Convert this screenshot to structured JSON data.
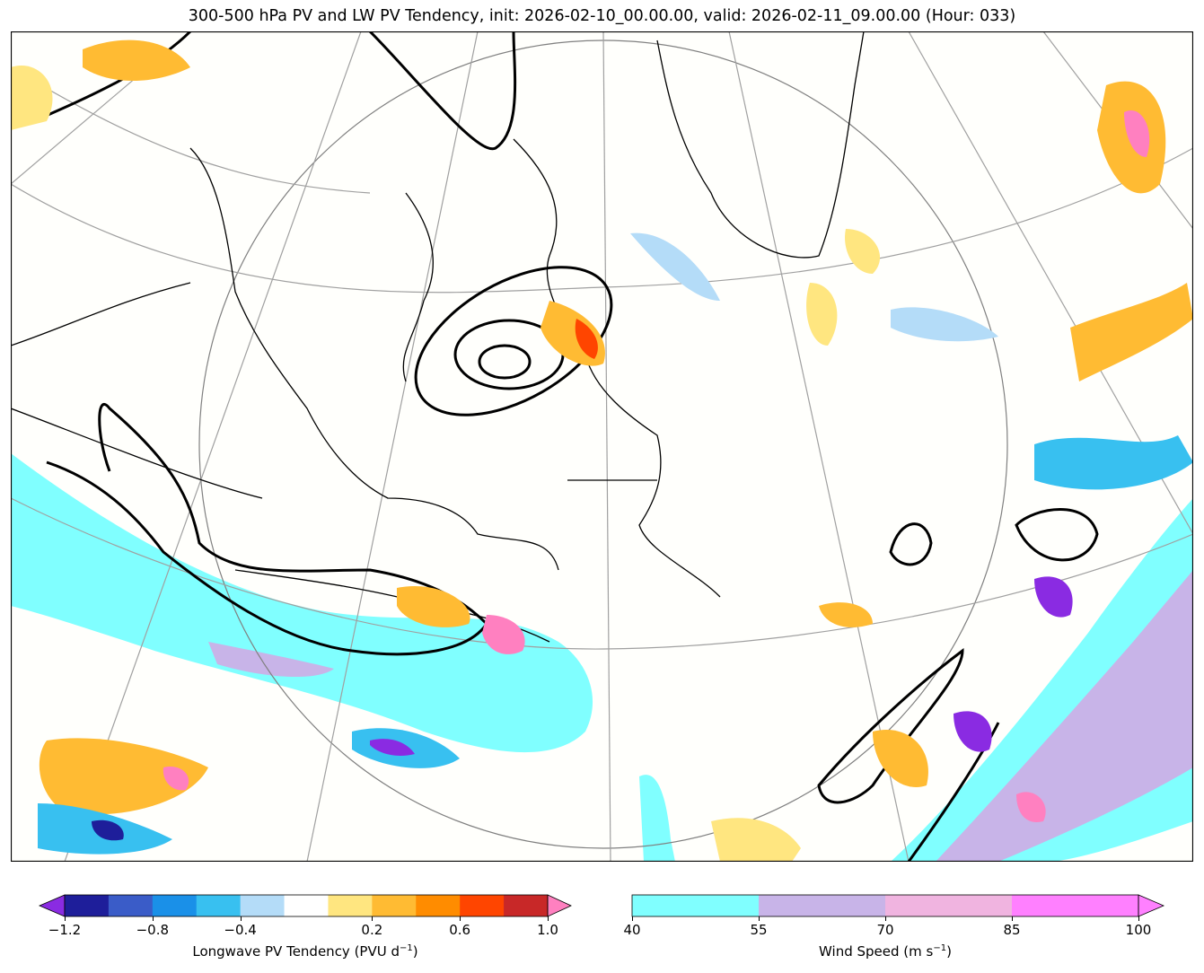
{
  "title": "300-500 hPa PV and LW PV Tendency, init: 2026-02-10_00.00.00, valid: 2026-02-11_09.00.00 (Hour: 033)",
  "colorbar_left": {
    "label": "Longwave PV Tendency (PVU d",
    "label_sup": "−1",
    "label_end": ")",
    "tick_labels": [
      "−1.2",
      "−0.8",
      "−0.4",
      "0.2",
      "0.6",
      "1.0"
    ],
    "colors": [
      "#8a2be2",
      "#1e1e9a",
      "#3a5cc8",
      "#1a90e8",
      "#38c0f0",
      "#b4dcf8",
      "#ffffff",
      "#ffe680",
      "#ffbb33",
      "#ff8c00",
      "#ff4500",
      "#c82828",
      "#ff80c0"
    ]
  },
  "colorbar_right": {
    "label": "Wind Speed (m s",
    "label_sup": "−1",
    "label_end": ")",
    "tick_labels": [
      "40",
      "55",
      "70",
      "85",
      "100"
    ],
    "colors": [
      "#80ffff",
      "#c8b4e8",
      "#f0b4e0",
      "#ff80ff"
    ]
  },
  "map": {
    "colors": {
      "coast": "#000000",
      "grid": "#a0a0a0",
      "jet": "#80ffff",
      "jet_strong": "#c8b4e8",
      "pv": "#000000",
      "warm": "#ffbb33",
      "cold": "#38c0f0"
    }
  }
}
